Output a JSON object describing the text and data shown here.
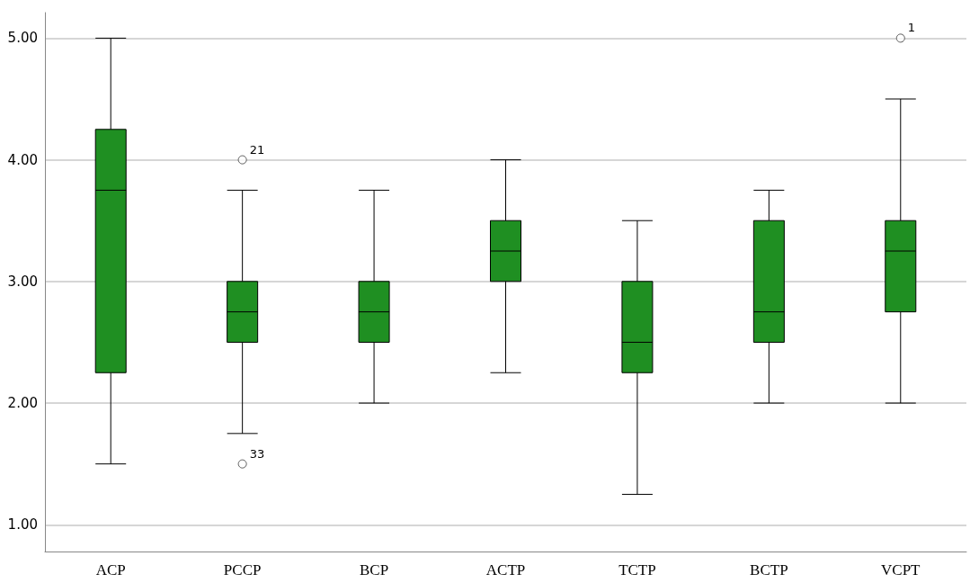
{
  "chart_data": {
    "type": "box",
    "categories": [
      "ACP",
      "PCCP",
      "BCP",
      "ACTP",
      "TCTP",
      "BCTP",
      "VCPT"
    ],
    "color": "#1f8f22",
    "boxes": [
      {
        "low": 1.5,
        "q1": 2.25,
        "median": 3.75,
        "q3": 4.25,
        "high": 5.0
      },
      {
        "low": 1.75,
        "q1": 2.5,
        "median": 2.75,
        "q3": 3.0,
        "high": 3.75,
        "outliers": [
          4.0,
          1.5
        ]
      },
      {
        "low": 2.0,
        "q1": 2.5,
        "median": 2.75,
        "q3": 3.0,
        "high": 3.75
      },
      {
        "low": 2.25,
        "q1": 3.0,
        "median": 3.25,
        "q3": 3.5,
        "high": 4.0
      },
      {
        "low": 1.25,
        "q1": 2.25,
        "median": 2.5,
        "q3": 3.0,
        "high": 3.5
      },
      {
        "low": 2.0,
        "q1": 2.5,
        "median": 2.75,
        "q3": 3.5,
        "high": 3.75
      },
      {
        "low": 2.0,
        "q1": 2.75,
        "median": 3.25,
        "q3": 3.5,
        "high": 4.5,
        "outliers": [
          5.0
        ]
      }
    ],
    "annotations": [
      "21",
      "33",
      "1"
    ],
    "ylim": [
      0.78,
      5.21
    ],
    "yticks": [
      {
        "value": 1,
        "label": "1.00"
      },
      {
        "value": 2,
        "label": "2.00"
      },
      {
        "value": 3,
        "label": "3.00"
      },
      {
        "value": 4,
        "label": "4.00"
      },
      {
        "value": 5,
        "label": "5.00"
      }
    ],
    "grid": "y"
  }
}
